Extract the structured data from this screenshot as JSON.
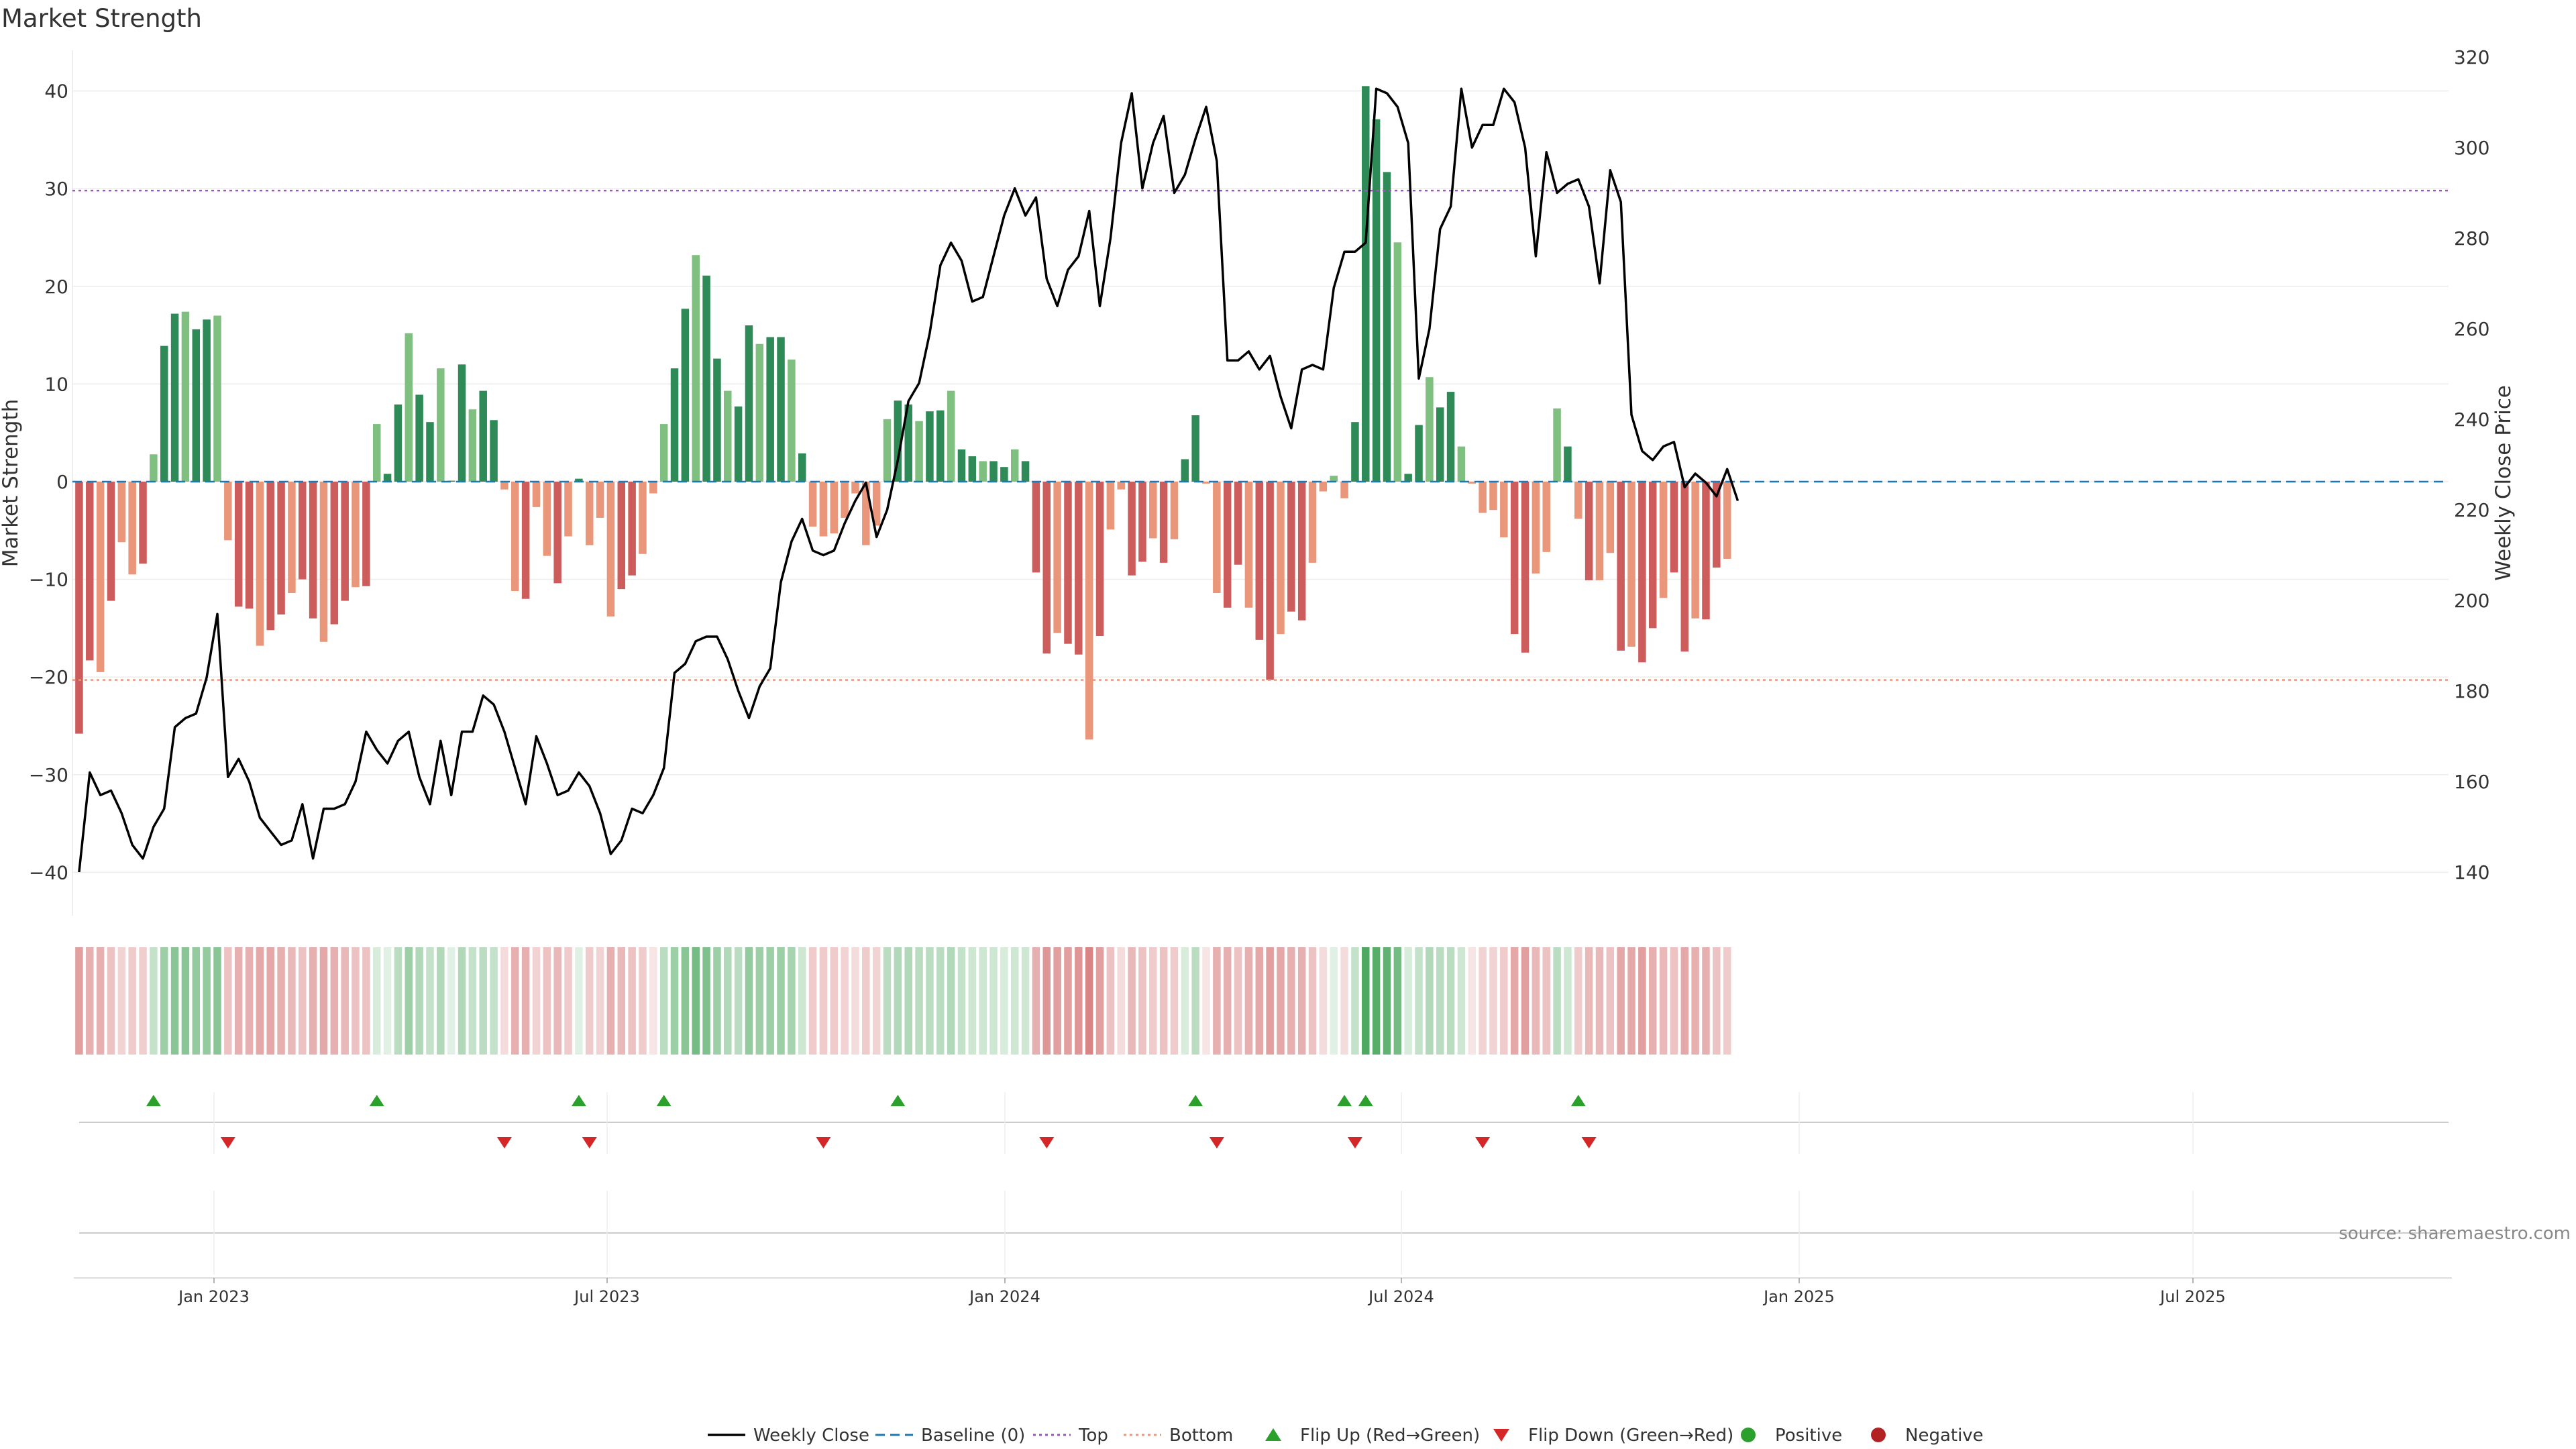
{
  "chart_data": {
    "type": "bar",
    "title": "Market Strength",
    "ylabel": "Market Strength",
    "y2label": "Weekly Close Price",
    "ylim": [
      -44,
      44
    ],
    "y2lim": [
      131.5,
      321
    ],
    "y_ticks": [
      "40",
      "30",
      "20",
      "10",
      "0",
      "−10",
      "−20",
      "−30",
      "−40"
    ],
    "y2_ticks": [
      "320",
      "300",
      "280",
      "260",
      "240",
      "220",
      "200",
      "180",
      "160",
      "140"
    ],
    "x_ticks": [
      "Jan 2023",
      "Jul 2023",
      "Jan 2024",
      "Jul 2024",
      "Jan 2025",
      "Jul 2025"
    ],
    "top_line": 29.8,
    "bottom_line": -20.3,
    "grid": true,
    "legend_position": "bottom-center",
    "source": "source: sharemaestro.com",
    "colors": {
      "pos_strong": "#2e8b57",
      "pos_light": "#7fbf7f",
      "neg_strong": "#cd5c5c",
      "neg_light": "#e9967a",
      "close": "#000000",
      "baseline": "#1f77b4",
      "top": "#9b59b6",
      "bottom": "#e9967a",
      "flip_up": "#2ca02c",
      "flip_down": "#d62728"
    },
    "strength": [
      -25.8,
      -18.3,
      -19.5,
      -12.2,
      -6.2,
      -9.5,
      -8.4,
      2.8,
      13.9,
      17.2,
      17.4,
      15.6,
      16.6,
      17.0,
      -6.0,
      -12.8,
      -13.0,
      -16.8,
      -15.2,
      -13.6,
      -11.4,
      -10.0,
      -14.0,
      -16.4,
      -14.6,
      -12.2,
      -10.8,
      -10.7,
      5.9,
      0.8,
      7.9,
      15.2,
      8.9,
      6.1,
      11.6,
      0.1,
      12.0,
      7.4,
      9.3,
      6.3,
      -0.8,
      -11.2,
      -12.0,
      -2.6,
      -7.6,
      -10.4,
      -5.6,
      0.3,
      -6.5,
      -3.7,
      -13.8,
      -11.0,
      -9.6,
      -7.4,
      -1.2,
      5.9,
      11.6,
      17.7,
      23.2,
      21.1,
      12.6,
      9.3,
      7.7,
      16.0,
      14.1,
      14.8,
      14.8,
      12.5,
      2.9,
      -4.6,
      -5.6,
      -5.3,
      -3.7,
      -1.2,
      -6.5,
      -4.5,
      6.4,
      8.3,
      7.9,
      6.2,
      7.2,
      7.3,
      9.3,
      3.3,
      2.6,
      2.1,
      2.1,
      1.5,
      3.3,
      2.1,
      -9.3,
      -17.6,
      -15.5,
      -16.6,
      -17.7,
      -26.4,
      -15.8,
      -4.9,
      -0.8,
      -9.6,
      -8.2,
      -5.8,
      -8.3,
      -5.9,
      2.3,
      6.8,
      -0.2,
      -11.4,
      -12.9,
      -8.5,
      -12.9,
      -16.2,
      -20.3,
      -15.6,
      -13.3,
      -14.2,
      -8.3,
      -1.0,
      0.6,
      -1.7,
      6.1,
      40.5,
      37.1,
      31.7,
      24.5,
      0.8,
      5.8,
      10.7,
      7.6,
      9.2,
      3.6,
      -0.2,
      -3.2,
      -2.9,
      -5.7,
      -15.6,
      -17.5,
      -9.4,
      -7.2,
      7.5,
      3.6,
      -3.8,
      -10.1,
      -10.1,
      -7.3,
      -17.3,
      -16.9,
      -18.5,
      -15.0,
      -11.9,
      -9.3,
      -17.4,
      -14.0,
      -14.1,
      -8.8,
      -7.9
    ],
    "close": [
      140,
      162,
      157,
      158,
      153,
      146,
      143,
      150,
      154,
      172,
      174,
      175,
      183,
      197,
      161,
      165,
      160,
      152,
      149,
      146,
      147,
      155,
      143,
      154,
      154,
      155,
      160,
      171,
      167,
      164,
      169,
      171,
      161,
      155,
      169,
      157,
      171,
      171,
      179,
      177,
      171,
      163,
      155,
      170,
      164,
      157,
      158,
      162,
      159,
      153,
      144,
      147,
      154,
      153,
      157,
      163,
      184,
      186,
      191,
      192,
      192,
      187,
      180,
      174,
      181,
      185,
      204,
      213,
      218,
      211,
      210,
      211,
      217,
      222,
      226,
      214,
      220,
      231,
      244,
      248,
      259,
      274,
      279,
      275,
      266,
      267,
      276,
      285,
      291,
      285,
      289,
      271,
      265,
      273,
      276,
      286,
      265,
      280,
      301,
      312,
      291,
      301,
      307,
      290,
      294,
      302,
      309,
      297,
      253,
      253,
      255,
      251,
      254,
      245,
      238,
      251,
      252,
      251,
      269,
      277,
      277,
      279,
      313,
      312,
      309,
      301,
      249,
      260,
      282,
      287,
      313,
      300,
      305,
      305,
      313,
      310,
      300,
      276,
      299,
      290,
      292,
      293,
      287,
      270,
      295,
      288,
      241,
      233,
      231,
      234,
      235,
      225,
      228,
      226,
      223,
      229,
      222
    ],
    "heat": [
      0.55,
      0.45,
      0.45,
      0.35,
      0.25,
      0.3,
      0.28,
      0.3,
      0.5,
      0.6,
      0.6,
      0.55,
      0.55,
      0.6,
      0.35,
      0.45,
      0.45,
      0.5,
      0.5,
      0.45,
      0.4,
      0.35,
      0.45,
      0.5,
      0.45,
      0.4,
      0.35,
      0.35,
      0.2,
      0.15,
      0.35,
      0.5,
      0.4,
      0.3,
      0.4,
      0.15,
      0.4,
      0.3,
      0.35,
      0.3,
      0.2,
      0.45,
      0.45,
      0.25,
      0.35,
      0.4,
      0.3,
      0.15,
      0.3,
      0.25,
      0.45,
      0.4,
      0.35,
      0.3,
      0.15,
      0.35,
      0.5,
      0.6,
      0.7,
      0.65,
      0.5,
      0.4,
      0.35,
      0.55,
      0.5,
      0.5,
      0.5,
      0.45,
      0.25,
      0.3,
      0.3,
      0.3,
      0.25,
      0.2,
      0.3,
      0.25,
      0.35,
      0.4,
      0.4,
      0.35,
      0.35,
      0.35,
      0.4,
      0.3,
      0.25,
      0.25,
      0.25,
      0.2,
      0.25,
      0.25,
      0.45,
      0.6,
      0.55,
      0.55,
      0.6,
      0.7,
      0.55,
      0.35,
      0.2,
      0.4,
      0.35,
      0.3,
      0.35,
      0.3,
      0.2,
      0.35,
      0.15,
      0.45,
      0.45,
      0.35,
      0.45,
      0.5,
      0.55,
      0.5,
      0.45,
      0.45,
      0.35,
      0.2,
      0.15,
      0.2,
      0.3,
      0.9,
      0.85,
      0.8,
      0.7,
      0.2,
      0.3,
      0.4,
      0.35,
      0.35,
      0.25,
      0.15,
      0.25,
      0.25,
      0.3,
      0.5,
      0.55,
      0.4,
      0.35,
      0.35,
      0.25,
      0.3,
      0.4,
      0.4,
      0.35,
      0.5,
      0.5,
      0.55,
      0.45,
      0.4,
      0.35,
      0.5,
      0.45,
      0.45,
      0.35,
      0.3
    ],
    "flip_up": [
      7,
      28,
      47,
      55,
      77,
      105,
      119,
      121,
      141
    ],
    "flip_down": [
      14,
      40,
      48,
      70,
      91,
      107,
      120,
      132,
      142
    ]
  },
  "legend": [
    {
      "key": "close",
      "label": "Weekly Close"
    },
    {
      "key": "baseline",
      "label": "Baseline (0)"
    },
    {
      "key": "top",
      "label": "Top"
    },
    {
      "key": "bottom",
      "label": "Bottom"
    },
    {
      "key": "flip_up",
      "label": "Flip Up (Red→Green)"
    },
    {
      "key": "flip_down",
      "label": "Flip Down (Green→Red)"
    },
    {
      "key": "positive",
      "label": "Positive"
    },
    {
      "key": "negative",
      "label": "Negative"
    }
  ]
}
